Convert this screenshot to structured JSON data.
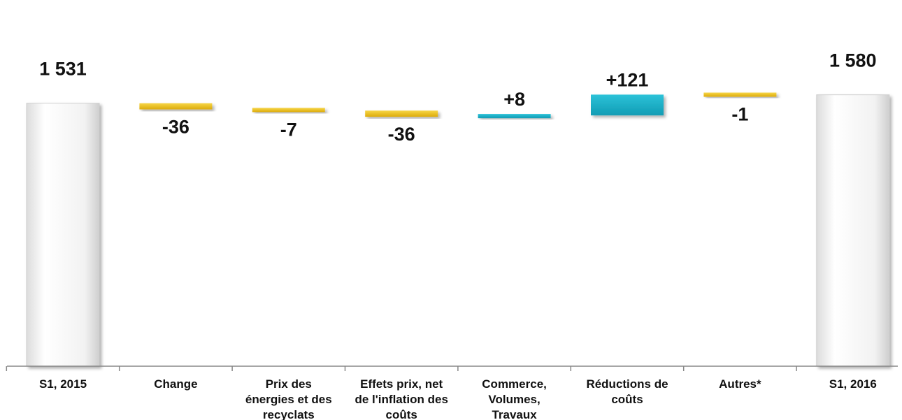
{
  "chart_data": {
    "type": "bar",
    "subtype": "waterfall",
    "title": "",
    "xlabel": "",
    "ylabel": "",
    "categories": [
      "S1, 2015",
      "Change",
      "Prix des énergies et des recyclats",
      "Effets prix, net de l'inflation des coûts",
      "Commerce, Volumes, Travaux",
      "Réductions de coûts",
      "Autres*",
      "S1, 2016"
    ],
    "category_label_lines": [
      [
        "S1, 2015"
      ],
      [
        "Change"
      ],
      [
        "Prix des",
        "énergies et des",
        "recyclats"
      ],
      [
        "Effets prix, net",
        "de l'inflation des",
        "coûts"
      ],
      [
        "Commerce,",
        "Volumes,",
        "Travaux"
      ],
      [
        "Réductions de",
        "coûts"
      ],
      [
        "Autres*"
      ],
      [
        "S1, 2016"
      ]
    ],
    "values": [
      1531,
      -36,
      -7,
      -36,
      8,
      121,
      -1,
      1580
    ],
    "kinds": [
      "total",
      "delta",
      "delta",
      "delta",
      "delta",
      "delta",
      "delta",
      "total"
    ],
    "data_labels": [
      "1 531",
      "-36",
      "-7",
      "-36",
      "+8",
      "+121",
      "-1",
      "1 580"
    ],
    "ylim": [
      0,
      1700
    ],
    "grid": false,
    "legend": "none",
    "colors": {
      "total": "#efefef",
      "increase": "#1ab0c8",
      "decrease": "#f0c419"
    }
  }
}
